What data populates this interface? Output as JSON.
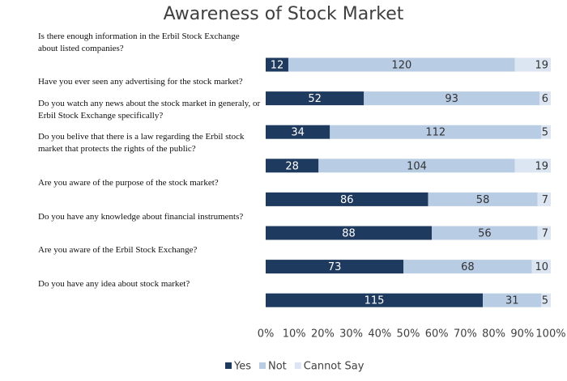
{
  "chart_data": {
    "type": "stacked_bar_100",
    "title": "Awareness of Stock Market",
    "categories": [
      "Is there enough information in the Erbil Stock Exchange about listed companies?",
      "Have you ever seen any advertising for the stock market?",
      "Do you watch any news about the stock market in generaly, or Erbil Stock Exchange specifically?",
      "Do you belive that there is a law regarding the Erbil stock market that protects the rights of the public?",
      "Are you aware of the purpose of the stock market?",
      "Do you have any knowledge about financial instruments?",
      "Are you aware of the Erbil Stock Exchange?",
      "Do you have any idea about stock market?"
    ],
    "series": [
      {
        "name": "Yes",
        "color": "#1f3a5f",
        "values": [
          12,
          52,
          34,
          28,
          86,
          88,
          73,
          115
        ]
      },
      {
        "name": "Not",
        "color": "#b8cce4",
        "values": [
          120,
          93,
          112,
          104,
          58,
          56,
          68,
          31
        ]
      },
      {
        "name": "Cannot Say",
        "color": "#dce6f2",
        "values": [
          19,
          6,
          5,
          19,
          7,
          7,
          10,
          5
        ]
      }
    ],
    "xlim": [
      0,
      100
    ],
    "xticks": [
      {
        "value": 0,
        "label": "0%"
      },
      {
        "value": 10,
        "label": "10%"
      },
      {
        "value": 20,
        "label": "20%"
      },
      {
        "value": 30,
        "label": "30%"
      },
      {
        "value": 40,
        "label": "40%"
      },
      {
        "value": 50,
        "label": "50%"
      },
      {
        "value": 60,
        "label": "60%"
      },
      {
        "value": 70,
        "label": "70%"
      },
      {
        "value": 80,
        "label": "80%"
      },
      {
        "value": 90,
        "label": "90%"
      },
      {
        "value": 100,
        "label": "100%"
      }
    ],
    "legend": "bottom"
  }
}
